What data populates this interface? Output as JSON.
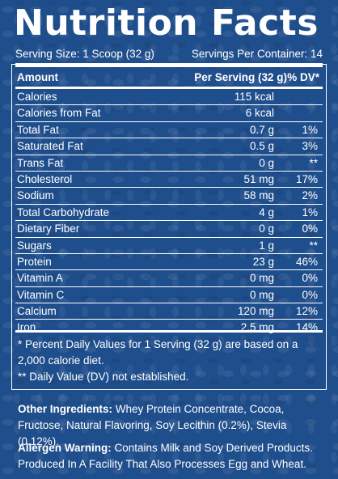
{
  "panel": {
    "title": "Nutrition Facts",
    "serving_size": "Serving Size: 1 Scoop (32 g)",
    "servings_per_container": "Servings Per Container: 14"
  },
  "table": {
    "headers": {
      "name": "Amount",
      "amount": "Per Serving (32 g)",
      "dv": "% DV*"
    },
    "rows": [
      {
        "name": "Calories",
        "amount": "115 kcal",
        "dv": ""
      },
      {
        "name": "Calories from Fat",
        "amount": "6 kcal",
        "dv": ""
      },
      {
        "name": "Total Fat",
        "amount": "0.7 g",
        "dv": "1%"
      },
      {
        "name": "Saturated Fat",
        "amount": "0.5 g",
        "dv": "3%"
      },
      {
        "name": "Trans Fat",
        "amount": "0 g",
        "dv": "**"
      },
      {
        "name": "Cholesterol",
        "amount": "51 mg",
        "dv": "17%"
      },
      {
        "name": "Sodium",
        "amount": "58 mg",
        "dv": "2%"
      },
      {
        "name": "Total Carbohydrate",
        "amount": "4 g",
        "dv": "1%"
      },
      {
        "name": "Dietary Fiber",
        "amount": "0 g",
        "dv": "0%"
      },
      {
        "name": "Sugars",
        "amount": "1 g",
        "dv": "**"
      },
      {
        "name": "Protein",
        "amount": "23 g",
        "dv": "46%"
      },
      {
        "name": "Vitamin A",
        "amount": "0 mg",
        "dv": "0%"
      },
      {
        "name": "Vitamin C",
        "amount": "0 mg",
        "dv": "0%"
      },
      {
        "name": "Calcium",
        "amount": "120 mg",
        "dv": "12%"
      },
      {
        "name": "Iron",
        "amount": "2.5 mg",
        "dv": "14%"
      }
    ]
  },
  "footnotes": {
    "percent_dv": "* Percent Daily Values for 1 Serving (32 g) are based on a 2,000 calorie diet.",
    "not_established": "** Daily Value (DV) not established."
  },
  "ingredients": {
    "label": "Other Ingredients:",
    "text": " Whey Protein Concentrate, Cocoa, Fructose, Natural Flavoring, Soy Lecithin (0.2%), Stevia (0.12%)."
  },
  "allergen": {
    "label": "Allergen Warning:",
    "text": " Contains Milk and Soy Derived Products. Produced In A Facility That Also Processes Egg and Wheat."
  }
}
